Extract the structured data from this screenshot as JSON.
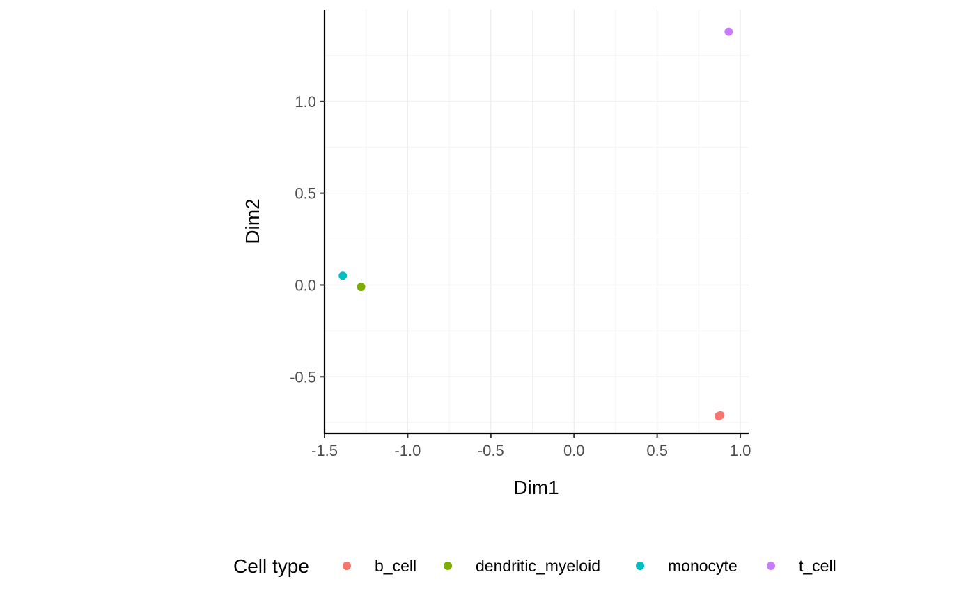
{
  "chart_data": {
    "type": "scatter",
    "title": "",
    "xlabel": "Dim1",
    "ylabel": "Dim2",
    "xlim": [
      -1.5,
      1.05
    ],
    "ylim": [
      -0.81,
      1.5
    ],
    "x_ticks": [
      -1.5,
      -1.0,
      -0.5,
      0.0,
      0.5,
      1.0
    ],
    "x_tick_labels": [
      "-1.5",
      "-1.0",
      "-0.5",
      "0.0",
      "0.5",
      "1.0"
    ],
    "y_ticks": [
      -0.5,
      0.0,
      0.5,
      1.0
    ],
    "y_tick_labels": [
      "-0.5",
      "0.0",
      "0.5",
      "1.0"
    ],
    "grid": true,
    "legend_title": "Cell type",
    "legend_position": "bottom",
    "series": [
      {
        "name": "b_cell",
        "color": "#F8766D",
        "points": [
          [
            0.87,
            -0.715
          ],
          [
            0.88,
            -0.71
          ]
        ]
      },
      {
        "name": "dendritic_myeloid",
        "color": "#7CAE00",
        "points": [
          [
            -1.28,
            -0.01
          ]
        ]
      },
      {
        "name": "monocyte",
        "color": "#00BFC4",
        "points": [
          [
            -1.39,
            0.05
          ]
        ]
      },
      {
        "name": "t_cell",
        "color": "#C77CFF",
        "points": [
          [
            0.93,
            1.38
          ]
        ]
      }
    ]
  }
}
